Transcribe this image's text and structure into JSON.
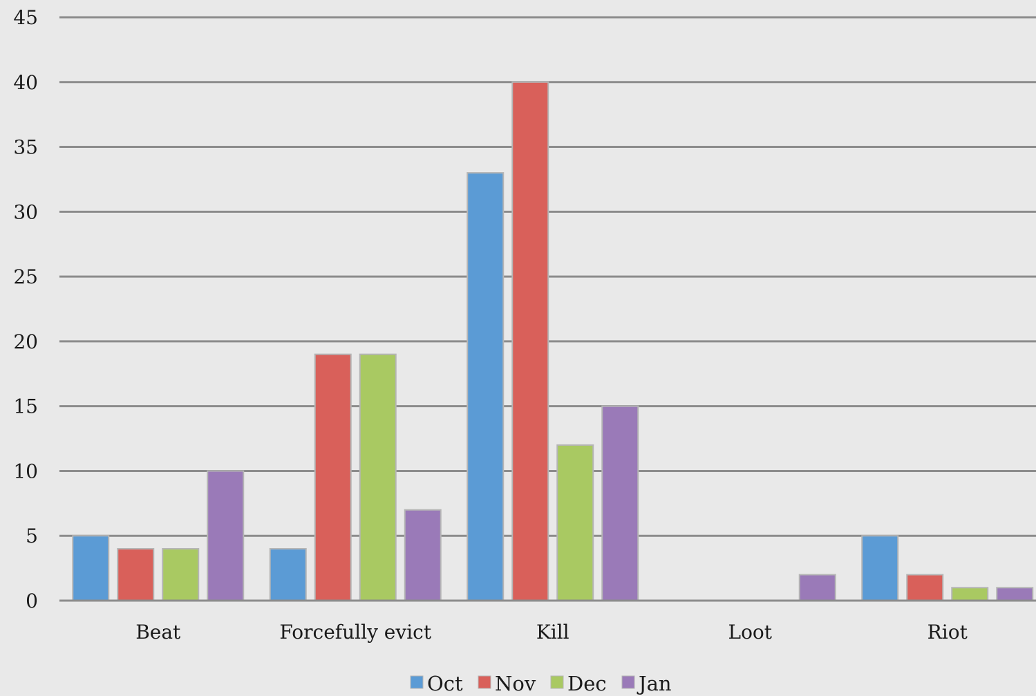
{
  "chart_data": {
    "type": "bar",
    "title": "",
    "xlabel": "",
    "ylabel": "",
    "categories": [
      "Beat",
      "Forcefully evict",
      "Kill",
      "Loot",
      "Riot"
    ],
    "series": [
      {
        "name": "Oct",
        "color": "#5b9bd5",
        "values": [
          5,
          4,
          33,
          0,
          5
        ]
      },
      {
        "name": "Nov",
        "color": "#d9605a",
        "values": [
          4,
          19,
          40,
          0,
          2
        ]
      },
      {
        "name": "Dec",
        "color": "#a9c962",
        "values": [
          4,
          19,
          12,
          0,
          1
        ]
      },
      {
        "name": "Jan",
        "color": "#9a7ab8",
        "values": [
          10,
          7,
          15,
          2,
          1
        ]
      }
    ],
    "ylim": [
      0,
      45
    ],
    "yticks": [
      0,
      5,
      10,
      15,
      20,
      25,
      30,
      35,
      40,
      45
    ],
    "grid": true,
    "legend": "bottom"
  }
}
